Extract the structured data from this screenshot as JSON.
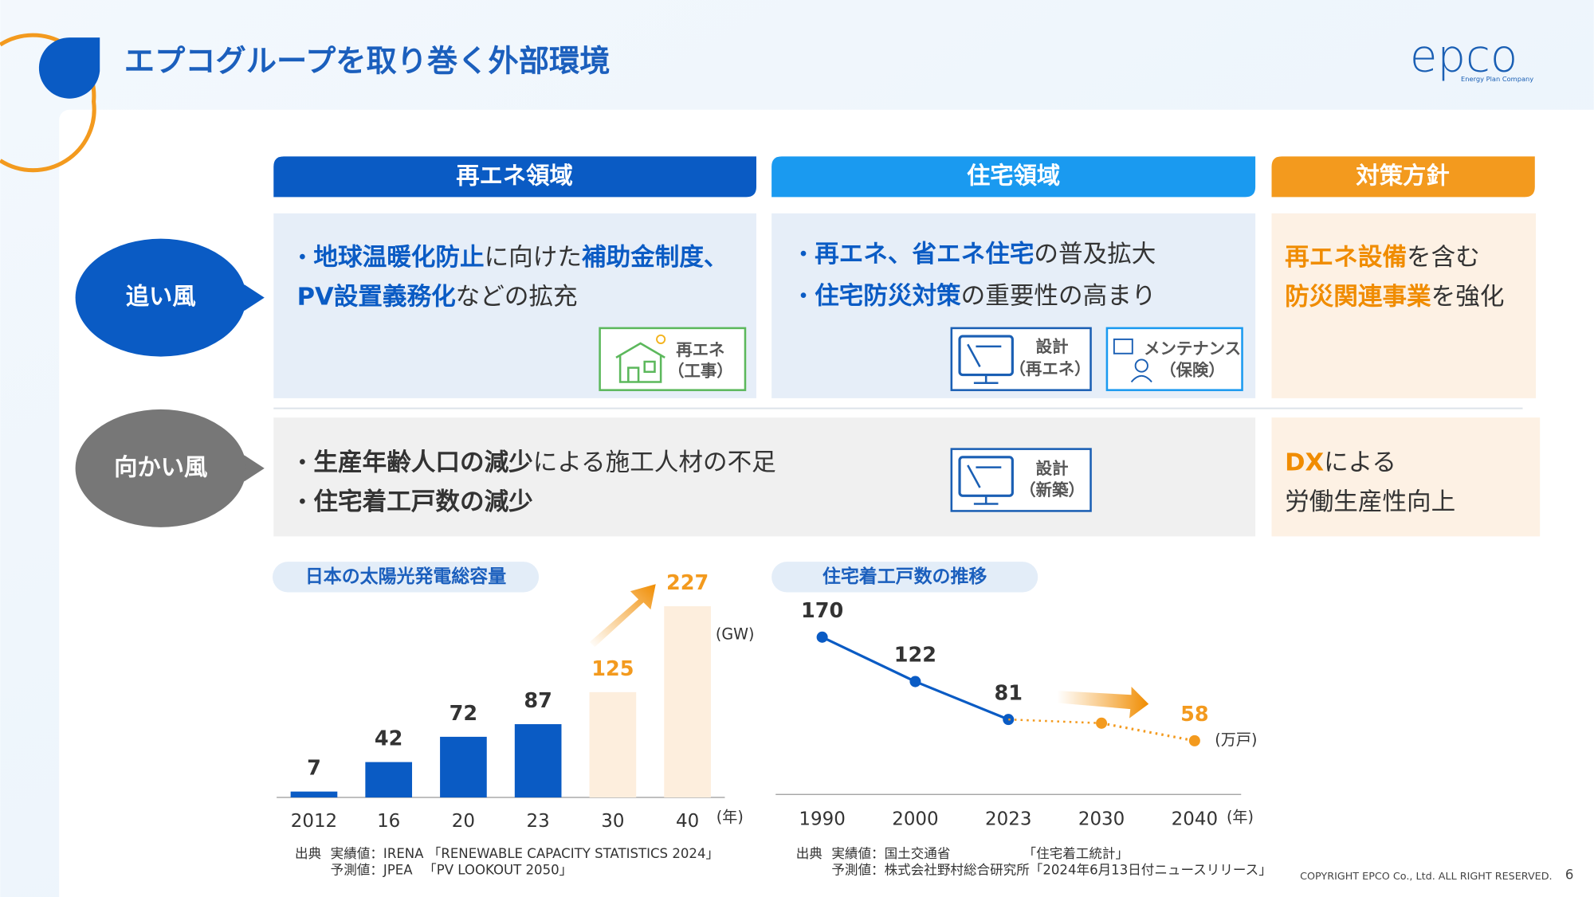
{
  "header": {
    "title": "エプコグループを取り巻く外部環境",
    "logo": "epco",
    "logo_sub": "Energy Plan Company"
  },
  "columns": [
    "再エネ領域",
    "住宅領域",
    "対策方針"
  ],
  "rows": [
    "追い風",
    "向かい風"
  ],
  "cells": [
    {
      "accent": "#0a5bc4",
      "lines": [
        {
          "bullet": "•",
          "segments": [
            {
              "text": "地球温暖化防止",
              "strong": true
            },
            {
              "text": "に向けた",
              "strong": false
            },
            {
              "text": "補助金制度、",
              "strong": true
            }
          ]
        },
        {
          "segments": [
            {
              "text": "PV設置義務化",
              "strong": true
            },
            {
              "text": "などの拡充",
              "strong": false
            }
          ]
        }
      ]
    },
    {
      "accent": "#0a5bc4",
      "lines": [
        {
          "bullet": "•",
          "segments": [
            {
              "text": "再エネ、省エネ住宅",
              "strong": true
            },
            {
              "text": "の普及拡大",
              "strong": false
            }
          ]
        },
        {
          "bullet": "•",
          "segments": [
            {
              "text": "住宅防災対策",
              "strong": true
            },
            {
              "text": "の重要性の高まり",
              "strong": false
            }
          ]
        }
      ]
    },
    {
      "accent": "#f08c00",
      "lines": [
        {
          "segments": [
            {
              "text": "再エネ設備",
              "strong": true
            },
            {
              "text": "を含む",
              "strong": false
            }
          ]
        },
        {
          "segments": [
            {
              "text": "防災関連事業",
              "strong": true
            },
            {
              "text": "を強化",
              "strong": false
            }
          ]
        }
      ]
    },
    {
      "accent": "#333333",
      "lines": [
        {
          "bullet": "•",
          "segments": [
            {
              "text": "生産年齢人口の減少",
              "strong": true
            },
            {
              "text": "による施工人材の不足",
              "strong": false
            }
          ]
        },
        {
          "bullet": "•",
          "segments": [
            {
              "text": "住宅着工戸数の減少",
              "strong": true
            }
          ]
        }
      ]
    },
    {
      "accent": "#f08c00",
      "lines": [
        {
          "segments": [
            {
              "text": "DX",
              "strong": true
            },
            {
              "text": "による",
              "strong": false
            }
          ]
        },
        {
          "segments": [
            {
              "text": "労働生産性向上",
              "strong": false
            }
          ]
        }
      ]
    }
  ],
  "badges": [
    [
      "再エネ",
      "（工事）"
    ],
    [
      "設計",
      "（再エネ）"
    ],
    [
      "メンテナンス",
      "（保険）"
    ],
    [
      "設計",
      "（新築）"
    ]
  ],
  "chart_data": [
    {
      "type": "bar",
      "title": "日本の太陽光発電総容量",
      "categories": [
        "2012",
        "16",
        "20",
        "23",
        "30",
        "40"
      ],
      "series": [
        {
          "color": "#0a5bc4",
          "label_color": "#333333",
          "values": [
            7,
            42,
            72,
            87,
            null,
            null
          ]
        },
        {
          "color": "#fdeedd",
          "label_color": "#f39a1e",
          "values": [
            null,
            null,
            null,
            null,
            125,
            227
          ]
        }
      ],
      "ylim": [
        0,
        240
      ],
      "y_unit": "(GW)",
      "x_unit": "(年)",
      "source": [
        "出典",
        "実績値：IRENA 「RENEWABLE CAPACITY STATISTICS 2024」",
        "予測値：JPEA 　「PV LOOKOUT 2050」"
      ]
    },
    {
      "type": "line",
      "title": "住宅着工戸数の推移",
      "categories": [
        "1990",
        "2000",
        "2023",
        "2030",
        "2040"
      ],
      "series": [
        {
          "color": "#0a5bc4",
          "label_color": "#333333",
          "values": [
            170,
            122,
            81,
            null,
            null
          ],
          "value_labels": [
            "170",
            "122",
            "81",
            null,
            null
          ]
        },
        {
          "color": "#f39a1e",
          "label_color": "#f39a1e",
          "dashed": true,
          "values": [
            null,
            null,
            null,
            77,
            58
          ],
          "value_labels": [
            null,
            null,
            null,
            null,
            "58"
          ]
        }
      ],
      "ylim": [
        0,
        190
      ],
      "y_unit": "(万戸)",
      "x_unit": "(年)",
      "source": [
        "出典",
        "実績値：国土交通省　　　　　　「住宅着工統計」",
        "予測値：株式会社野村総合研究所「2024年6月13日付ニュースリリース」"
      ]
    }
  ],
  "footer": {
    "copyright": "COPYRIGHT EPCO Co., Ltd. ALL RIGHT RESERVED.",
    "page": "6"
  }
}
